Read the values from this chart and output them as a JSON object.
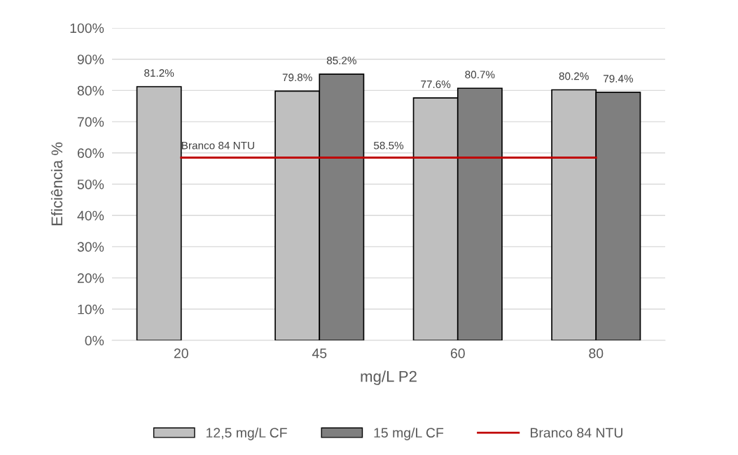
{
  "chart_data": {
    "type": "bar",
    "xlabel": "mg/L P2",
    "ylabel": "Eficiência %",
    "categories": [
      "20",
      "45",
      "60",
      "80"
    ],
    "series": [
      {
        "name": "12,5 mg/L CF",
        "color": "#bfbfbf",
        "values": [
          81.2,
          79.8,
          77.6,
          80.2
        ],
        "value_labels": [
          "81.2%",
          "79.8%",
          "77.6%",
          "80.2%"
        ]
      },
      {
        "name": "15 mg/L CF",
        "color": "#7f7f7f",
        "values": [
          null,
          85.2,
          80.7,
          79.4
        ],
        "value_labels": [
          null,
          "85.2%",
          "80.7%",
          "79.4%"
        ]
      },
      {
        "name": "Branco 84 NTU",
        "type": "line",
        "color": "#c00000",
        "values": [
          58.5,
          58.5,
          58.5,
          58.5
        ]
      }
    ],
    "annotations": [
      {
        "text": "Branco 84 NTU",
        "x": "20",
        "y": 58.5
      },
      {
        "text": "58.5%",
        "y": 58.5
      }
    ],
    "ylim": [
      0,
      100
    ],
    "yticks": [
      {
        "value": 0,
        "label": "0%"
      },
      {
        "value": 10,
        "label": "10%"
      },
      {
        "value": 20,
        "label": "20%"
      },
      {
        "value": 30,
        "label": "30%"
      },
      {
        "value": 40,
        "label": "40%"
      },
      {
        "value": 50,
        "label": "50%"
      },
      {
        "value": 60,
        "label": "60%"
      },
      {
        "value": 70,
        "label": "70%"
      },
      {
        "value": 80,
        "label": "80%"
      },
      {
        "value": 90,
        "label": "90%"
      },
      {
        "value": 100,
        "label": "100%"
      }
    ],
    "grid": "y",
    "legend": "bottom"
  }
}
